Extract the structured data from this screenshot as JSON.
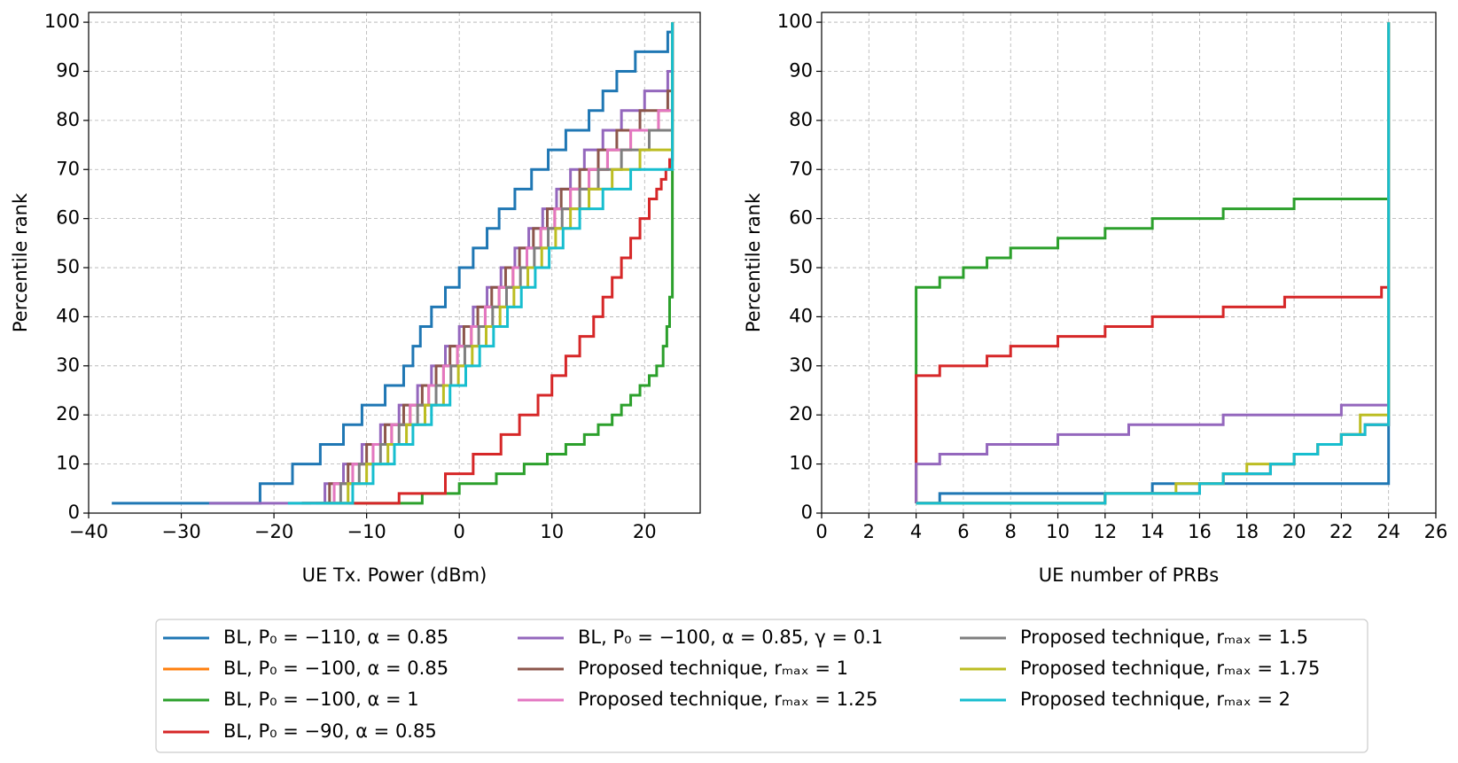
{
  "chart_data": [
    {
      "type": "step",
      "xlabel": "UE Tx. Power (dBm)",
      "ylabel": "Percentile rank",
      "xlim": [
        -40,
        26
      ],
      "ylim": [
        0,
        102
      ],
      "xticks": [
        {
          "value": -40,
          "label": "−40"
        },
        {
          "value": -30,
          "label": "−30"
        },
        {
          "value": -20,
          "label": "−20"
        },
        {
          "value": -10,
          "label": "−10"
        },
        0,
        10,
        20
      ],
      "yticks": [
        0,
        10,
        20,
        30,
        40,
        50,
        60,
        70,
        80,
        90,
        100
      ],
      "grid": true,
      "series": [
        {
          "name": "BL, P₀ = −110, α = 0.85",
          "color": "#1f77b4",
          "x": [
            -37.5,
            -21.5,
            -18,
            -15,
            -12.5,
            -10.5,
            -8,
            -6,
            -5,
            -4.2,
            -3,
            -1.5,
            0,
            1.5,
            3,
            4.3,
            6,
            7.8,
            9.6,
            11.5,
            14,
            15.5,
            17,
            19,
            22.5,
            23
          ],
          "values": [
            2,
            6,
            10,
            14,
            18,
            22,
            26,
            30,
            34,
            38,
            42,
            46,
            50,
            54,
            58,
            62,
            66,
            70,
            74,
            78,
            82,
            86,
            90,
            94,
            98,
            100
          ]
        },
        {
          "name": "BL, P₀ = −100, α = 0.85",
          "color": "#ff7f0e",
          "x": [
            -16,
            -13.5,
            -11.5,
            -9.3,
            -7.3,
            -5.3,
            -3.3,
            -1.7,
            -0.2,
            1.3,
            2.8,
            4.3,
            5.8,
            7.3,
            8.8,
            10.3,
            12,
            14,
            16,
            18.5,
            21.5,
            23
          ],
          "values": [
            2,
            6,
            10,
            14,
            18,
            22,
            26,
            30,
            34,
            38,
            42,
            46,
            50,
            54,
            58,
            62,
            66,
            70,
            74,
            78,
            82,
            100
          ]
        },
        {
          "name": "BL, P₀ = −100, α = 1",
          "color": "#2ca02c",
          "x": [
            -17,
            -4,
            0,
            4,
            7,
            9.5,
            11.5,
            13.5,
            15,
            16.5,
            17.5,
            18.5,
            19.5,
            20.5,
            21.3,
            22,
            22.4,
            22.7,
            23,
            23
          ],
          "values": [
            2,
            4,
            6,
            8,
            10,
            12,
            14,
            16,
            18,
            20,
            22,
            24,
            26,
            28,
            30,
            34,
            38,
            44,
            60,
            100
          ]
        },
        {
          "name": "BL, P₀ = −90, α = 0.85",
          "color": "#d62728",
          "x": [
            -17,
            -6.5,
            -1.5,
            1.5,
            4.5,
            6.5,
            8.5,
            10,
            11.5,
            13,
            14.5,
            15.5,
            16.5,
            17.5,
            18.5,
            19.5,
            20.5,
            21.3,
            21.8,
            22.3,
            22.7,
            23,
            23
          ],
          "values": [
            2,
            4,
            8,
            12,
            16,
            20,
            24,
            28,
            32,
            36,
            40,
            44,
            48,
            52,
            56,
            60,
            64,
            66,
            68,
            70,
            72,
            74,
            100
          ]
        },
        {
          "name": "BL, P₀ = −100, α = 0.85, γ = 0.1",
          "color": "#9467bd",
          "x": [
            -27,
            -14.5,
            -12.5,
            -10.5,
            -8.5,
            -6.5,
            -4.5,
            -3,
            -1.5,
            0,
            1.5,
            3,
            4.5,
            6,
            7.5,
            9,
            10.5,
            12,
            13.5,
            15.5,
            17.5,
            20,
            22.5,
            23
          ],
          "values": [
            2,
            6,
            10,
            14,
            18,
            22,
            26,
            30,
            34,
            38,
            42,
            46,
            50,
            54,
            58,
            62,
            66,
            70,
            74,
            78,
            82,
            86,
            90,
            100
          ]
        },
        {
          "name": "Proposed technique, rₘₐₓ = 1",
          "color": "#8c564b",
          "x": [
            -17,
            -14,
            -12,
            -10,
            -8,
            -6,
            -4,
            -2.5,
            -1,
            0.5,
            2,
            3.5,
            5,
            6.5,
            8,
            9.5,
            11,
            13,
            15,
            17,
            19.5,
            22.5,
            23
          ],
          "values": [
            2,
            6,
            10,
            14,
            18,
            22,
            26,
            30,
            34,
            38,
            42,
            46,
            50,
            54,
            58,
            62,
            66,
            70,
            74,
            78,
            82,
            86,
            100
          ]
        },
        {
          "name": "Proposed technique, rₘₐₓ = 1.25",
          "color": "#e377c2",
          "x": [
            -16,
            -13.5,
            -11.5,
            -9.3,
            -7.3,
            -5.3,
            -3.3,
            -1.7,
            -0.2,
            1.3,
            2.8,
            4.3,
            5.8,
            7.3,
            8.8,
            10.3,
            12,
            14,
            16,
            18.5,
            21.5,
            23
          ],
          "values": [
            2,
            6,
            10,
            14,
            18,
            22,
            26,
            30,
            34,
            38,
            42,
            46,
            50,
            54,
            58,
            62,
            66,
            70,
            74,
            78,
            82,
            100
          ]
        },
        {
          "name": "Proposed technique, rₘₐₓ = 1.5",
          "color": "#7f7f7f",
          "x": [
            -15.5,
            -12.8,
            -10.8,
            -8.5,
            -6.5,
            -4.5,
            -2.5,
            -0.9,
            0.6,
            2.1,
            3.6,
            5.1,
            6.6,
            8.1,
            9.6,
            11.1,
            13,
            15,
            17.5,
            20.5,
            23
          ],
          "values": [
            2,
            6,
            10,
            14,
            18,
            22,
            26,
            30,
            34,
            38,
            42,
            46,
            50,
            54,
            58,
            62,
            66,
            70,
            74,
            78,
            100
          ]
        },
        {
          "name": "Proposed technique, rₘₐₓ = 1.75",
          "color": "#bcbd22",
          "x": [
            -15,
            -12,
            -10,
            -7.7,
            -5.7,
            -3.7,
            -1.7,
            -0.1,
            1.4,
            2.9,
            4.4,
            5.9,
            7.4,
            8.9,
            10.4,
            12,
            14,
            16.5,
            19.5,
            23
          ],
          "values": [
            2,
            6,
            10,
            14,
            18,
            22,
            26,
            30,
            34,
            38,
            42,
            46,
            50,
            54,
            58,
            62,
            66,
            70,
            74,
            100
          ]
        },
        {
          "name": "Proposed technique, rₘₐₓ = 2",
          "color": "#17becf",
          "x": [
            -18.5,
            -11.5,
            -9.3,
            -7,
            -5,
            -3,
            -1,
            0.7,
            2.2,
            3.7,
            5.2,
            6.7,
            8.2,
            9.7,
            11.2,
            13,
            15.5,
            18.5,
            23
          ],
          "values": [
            2,
            6,
            10,
            14,
            18,
            22,
            26,
            30,
            34,
            38,
            42,
            46,
            50,
            54,
            58,
            62,
            66,
            70,
            100
          ]
        }
      ]
    },
    {
      "type": "step",
      "xlabel": "UE number of PRBs",
      "ylabel": "Percentile rank",
      "xlim": [
        0,
        26
      ],
      "ylim": [
        0,
        102
      ],
      "xticks": [
        0,
        2,
        4,
        6,
        8,
        10,
        12,
        14,
        16,
        18,
        20,
        22,
        24,
        26
      ],
      "yticks": [
        0,
        10,
        20,
        30,
        40,
        50,
        60,
        70,
        80,
        90,
        100
      ],
      "grid": true,
      "series": [
        {
          "color": "#1f77b4",
          "x": [
            4,
            5,
            14,
            24,
            24
          ],
          "values": [
            2,
            4,
            6,
            18,
            100
          ]
        },
        {
          "color": "#ff7f0e",
          "x": [
            4,
            12,
            16,
            17,
            19,
            20,
            21,
            22,
            23,
            24
          ],
          "values": [
            2,
            4,
            6,
            8,
            10,
            12,
            14,
            16,
            18,
            100
          ]
        },
        {
          "color": "#2ca02c",
          "x": [
            4,
            4,
            5,
            6,
            7,
            8,
            10,
            12,
            14,
            17,
            20,
            24
          ],
          "values": [
            2,
            46,
            48,
            50,
            52,
            54,
            56,
            58,
            60,
            62,
            64,
            100
          ]
        },
        {
          "color": "#d62728",
          "x": [
            4,
            4,
            5,
            7,
            8,
            10,
            12,
            14,
            17,
            19.6,
            23.7,
            24
          ],
          "values": [
            2,
            28,
            30,
            32,
            34,
            36,
            38,
            40,
            42,
            44,
            46,
            100
          ]
        },
        {
          "color": "#9467bd",
          "x": [
            4,
            4,
            5,
            7,
            10,
            13,
            17,
            22,
            24
          ],
          "values": [
            2,
            10,
            12,
            14,
            16,
            18,
            20,
            22,
            100
          ]
        },
        {
          "color": "#8c564b",
          "x": [
            4,
            12,
            16,
            17,
            19,
            20,
            21,
            22,
            23,
            24
          ],
          "values": [
            2,
            4,
            6,
            8,
            10,
            12,
            14,
            16,
            18,
            100
          ]
        },
        {
          "color": "#e377c2",
          "x": [
            4,
            12,
            16,
            17,
            19,
            20,
            21,
            22,
            23,
            24
          ],
          "values": [
            2,
            4,
            6,
            8,
            10,
            12,
            14,
            16,
            18,
            100
          ]
        },
        {
          "color": "#7f7f7f",
          "x": [
            4,
            12,
            16,
            17,
            19,
            20,
            21,
            22,
            23,
            24
          ],
          "values": [
            2,
            4,
            6,
            8,
            10,
            12,
            14,
            16,
            18,
            100
          ]
        },
        {
          "color": "#bcbd22",
          "x": [
            4,
            12,
            15,
            17,
            18,
            20,
            21,
            22,
            22.8,
            24
          ],
          "values": [
            2,
            4,
            6,
            8,
            10,
            12,
            14,
            16,
            20,
            100
          ]
        },
        {
          "color": "#17becf",
          "x": [
            4,
            12,
            16,
            17,
            19,
            20,
            21,
            22,
            23,
            24
          ],
          "values": [
            2,
            4,
            6,
            8,
            10,
            12,
            14,
            16,
            18,
            100
          ]
        }
      ]
    }
  ]
}
